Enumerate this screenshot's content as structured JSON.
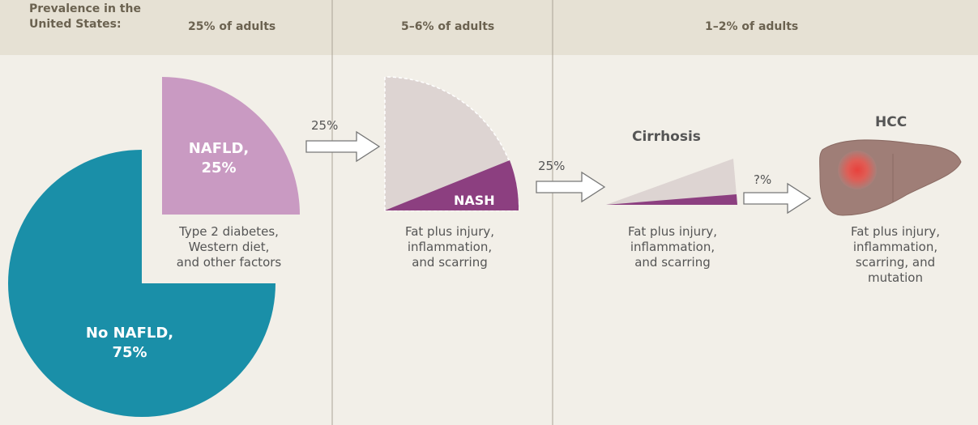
{
  "header": {
    "label_lines": [
      "Prevalence in the",
      "United States:"
    ],
    "stages": [
      "25% of adults",
      "5–6% of adults",
      "1–2% of adults"
    ]
  },
  "nafld": {
    "healthy_lines": [
      "No NAFLD,",
      "75%"
    ],
    "affected_lines": [
      "NAFLD,",
      "25%"
    ],
    "caption_lines": [
      "Type 2 diabetes,",
      "Western diet,",
      "and other factors"
    ]
  },
  "arrows": [
    "25%",
    "25%",
    "?%"
  ],
  "nash": {
    "label": "NASH",
    "caption_lines": [
      "Fat plus injury,",
      "inflammation,",
      "and scarring"
    ]
  },
  "cirrhosis": {
    "label": "Cirrhosis",
    "caption_lines": [
      "Fat plus injury,",
      "inflammation,",
      "and scarring"
    ]
  },
  "hcc": {
    "label": "HCC",
    "caption_lines": [
      "Fat plus injury,",
      "inflammation,",
      "scarring, and",
      "mutation"
    ]
  }
}
